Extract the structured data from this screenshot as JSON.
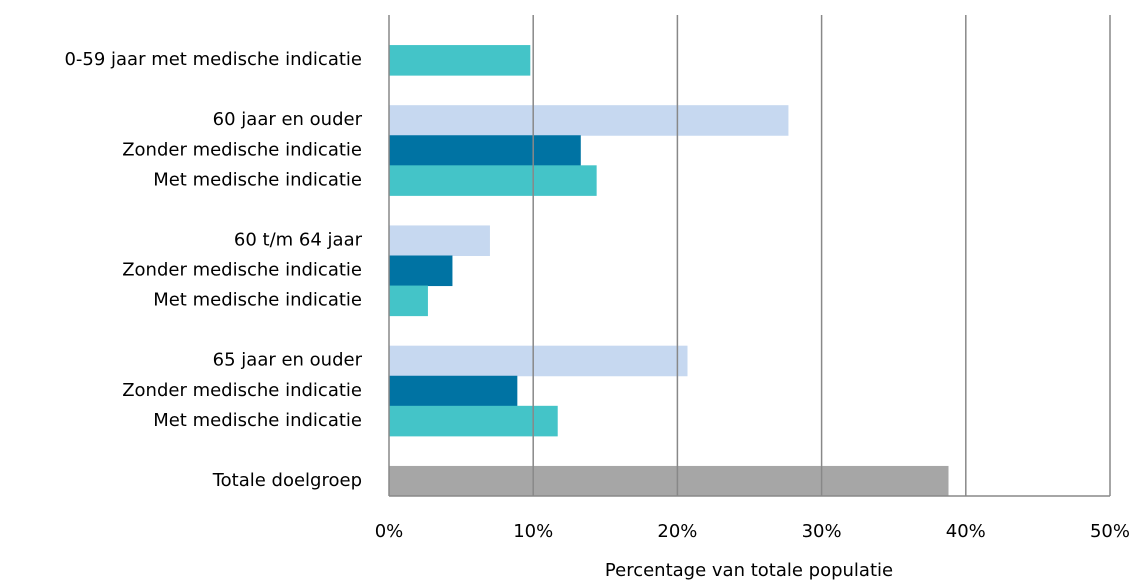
{
  "chart_data": {
    "type": "barh",
    "categories": [
      null,
      "0-59 jaar met medische indicatie",
      null,
      "60 jaar en ouder",
      "Zonder medische indicatie",
      "Met medische indicatie",
      null,
      "60 t/m 64 jaar",
      "Zonder medische indicatie",
      "Met medische indicatie",
      null,
      "65 jaar en ouder",
      "Zonder medische indicatie",
      "Met medische indicatie",
      null,
      "Totale doelgroep"
    ],
    "values": [
      null,
      9.8,
      null,
      27.7,
      13.3,
      14.4,
      null,
      7.0,
      4.4,
      2.7,
      null,
      20.7,
      8.9,
      11.7,
      null,
      38.8
    ],
    "colors": [
      null,
      "#44c4c8",
      null,
      "#c6d8f0",
      "#0073a3",
      "#44c4c8",
      null,
      "#c6d8f0",
      "#0073a3",
      "#44c4c8",
      null,
      "#c6d8f0",
      "#0073a3",
      "#44c4c8",
      null,
      "#a6a6a6"
    ],
    "xlim": [
      0,
      50
    ],
    "xticks": [
      {
        "value": 0,
        "label": "0%"
      },
      {
        "value": 10,
        "label": "10%"
      },
      {
        "value": 20,
        "label": "20%"
      },
      {
        "value": 30,
        "label": "30%"
      },
      {
        "value": 40,
        "label": "40%"
      },
      {
        "value": 50,
        "label": "50%"
      }
    ],
    "xlabel": "Percentage van totale populatie",
    "grid": true
  }
}
